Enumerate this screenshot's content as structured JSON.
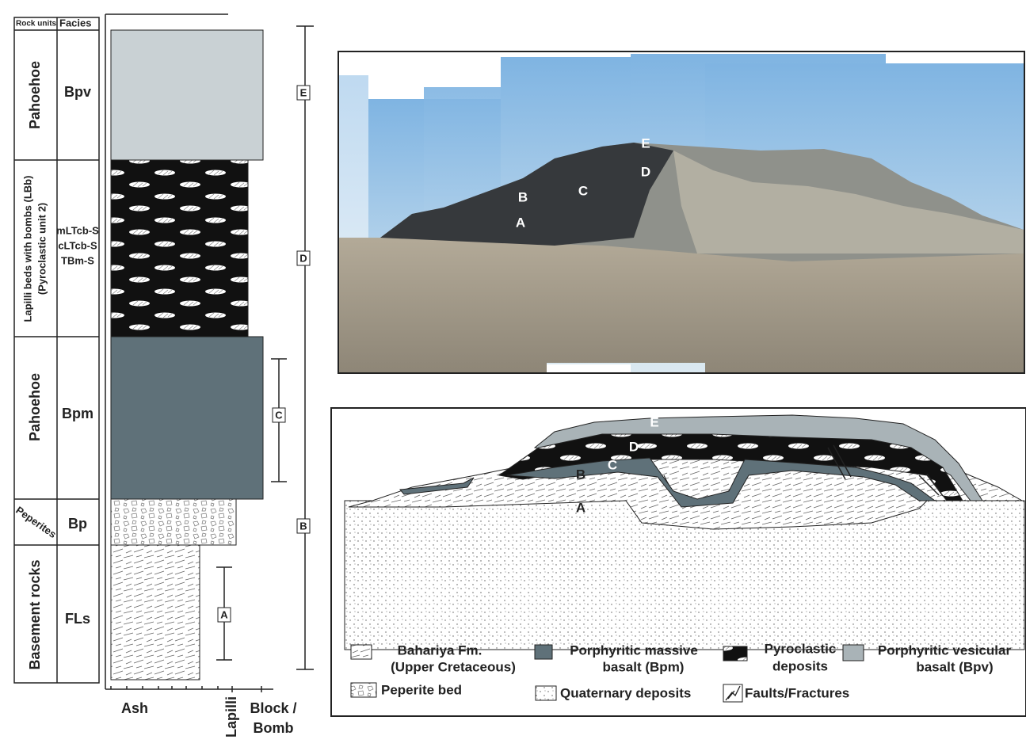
{
  "column": {
    "header": {
      "rock_units": "Rock units",
      "facies": "Facies"
    },
    "units": [
      {
        "rock_unit": [
          "Pahoehoe"
        ],
        "facies": [
          "Bpv"
        ]
      },
      {
        "rock_unit": [
          "Lapilli beds with bombs (LBb)",
          "(Pyroclastic unit 2)"
        ],
        "facies": [
          "mLTcb-S",
          "cLTcb-S",
          "TBm-S"
        ]
      },
      {
        "rock_unit": [
          "Pahoehoe"
        ],
        "facies": [
          "Bpm"
        ]
      },
      {
        "rock_unit": [
          "Peperites"
        ],
        "facies": [
          "Bp"
        ]
      },
      {
        "rock_unit": [
          "Basement rocks"
        ],
        "facies": [
          "FLs"
        ]
      }
    ],
    "grain_size": {
      "ash": "Ash",
      "lapilli": "Lapilli",
      "block_bomb": [
        "Block /",
        "Bomb"
      ]
    },
    "intervals": [
      "E",
      "D",
      "C",
      "B",
      "A"
    ]
  },
  "photo": {
    "labels": [
      "E",
      "D",
      "C",
      "B",
      "A"
    ]
  },
  "section": {
    "labels": [
      "E",
      "D",
      "C",
      "B",
      "A"
    ]
  },
  "legend": [
    {
      "lines": [
        "Bahariya Fm.",
        "(Upper Cretaceous)"
      ]
    },
    {
      "lines": [
        "Porphyritic massive",
        "basalt (Bpm)"
      ]
    },
    {
      "lines": [
        "Pyroclastic",
        "deposits"
      ]
    },
    {
      "lines": [
        "Porphyritic vesicular",
        "basalt (Bpv)"
      ]
    },
    {
      "lines": [
        "Peperite bed"
      ]
    },
    {
      "lines": [
        "Quaternary deposits"
      ]
    },
    {
      "lines": [
        "Faults/Fractures"
      ]
    }
  ]
}
